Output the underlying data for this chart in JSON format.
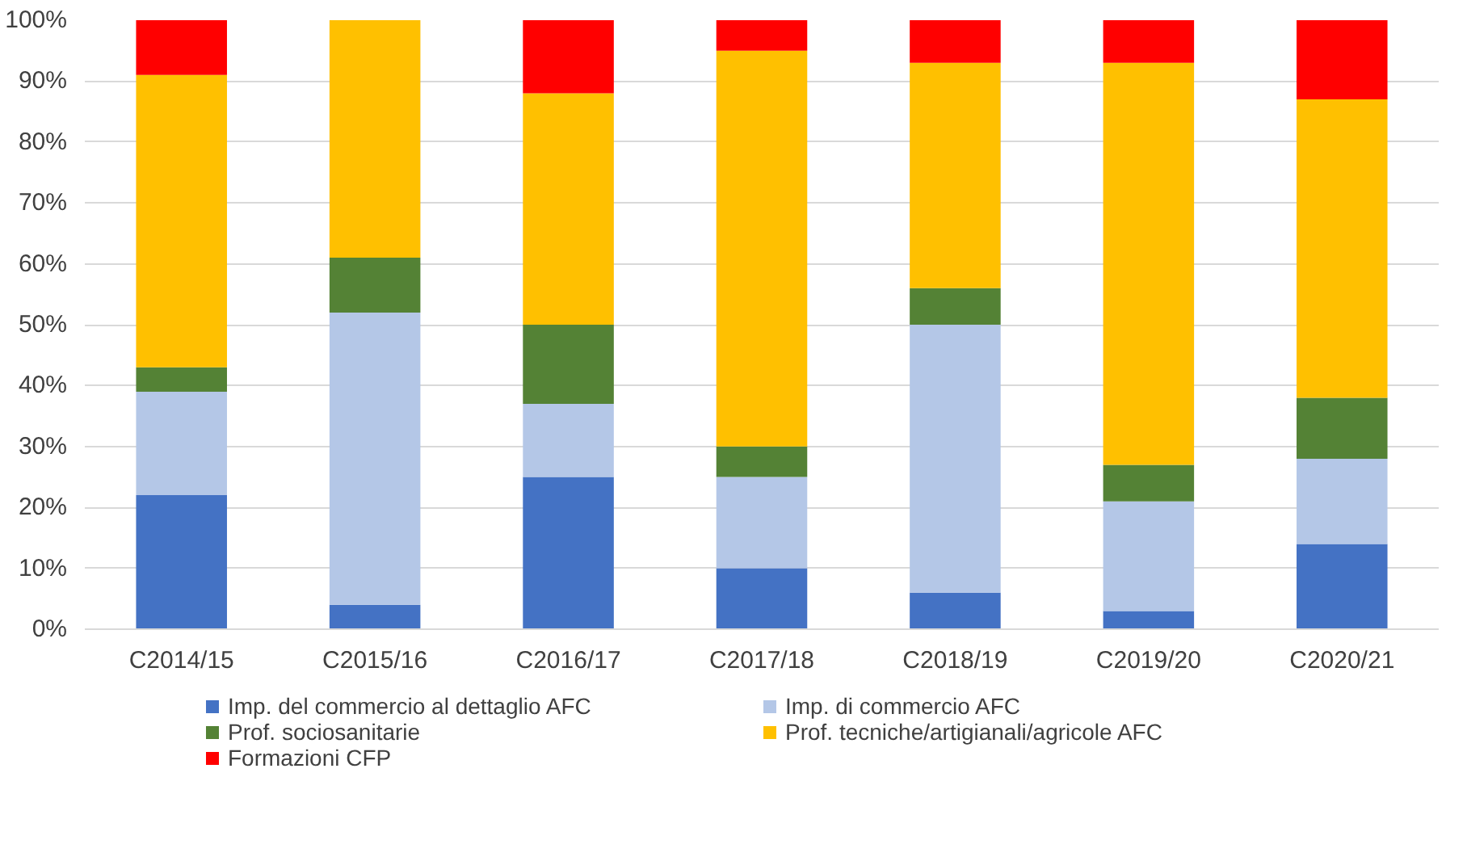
{
  "chart_data": {
    "type": "bar",
    "stacked": true,
    "categories": [
      "C2014/15",
      "C2015/16",
      "C2016/17",
      "C2017/18",
      "C2018/19",
      "C2019/20",
      "C2020/21"
    ],
    "series": [
      {
        "name": "Imp. del commercio al dettaglio AFC",
        "color": "#4472c4",
        "values": [
          22,
          4,
          25,
          10,
          6,
          3,
          14
        ]
      },
      {
        "name": "Imp. di commercio AFC",
        "color": "#b4c7e7",
        "values": [
          17,
          48,
          12,
          15,
          44,
          18,
          14
        ]
      },
      {
        "name": "Prof. sociosanitarie",
        "color": "#548235",
        "values": [
          4,
          9,
          13,
          5,
          6,
          6,
          10
        ]
      },
      {
        "name": "Prof. tecniche/artigianali/agricole AFC",
        "color": "#ffc000",
        "values": [
          48,
          39,
          38,
          65,
          37,
          66,
          49
        ]
      },
      {
        "name": "Formazioni CFP",
        "color": "#ff0000",
        "values": [
          9,
          0,
          12,
          5,
          7,
          7,
          13
        ]
      }
    ],
    "ylim": [
      0,
      100
    ],
    "yticks": [
      {
        "value": 0,
        "label": "0%"
      },
      {
        "value": 10,
        "label": "10%"
      },
      {
        "value": 20,
        "label": "20%"
      },
      {
        "value": 30,
        "label": "30%"
      },
      {
        "value": 40,
        "label": "40%"
      },
      {
        "value": 50,
        "label": "50%"
      },
      {
        "value": 60,
        "label": "60%"
      },
      {
        "value": 70,
        "label": "70%"
      },
      {
        "value": 80,
        "label": "80%"
      },
      {
        "value": 90,
        "label": "90%"
      },
      {
        "value": 100,
        "label": "100%"
      }
    ],
    "grid": "y",
    "legend": "bottom"
  }
}
